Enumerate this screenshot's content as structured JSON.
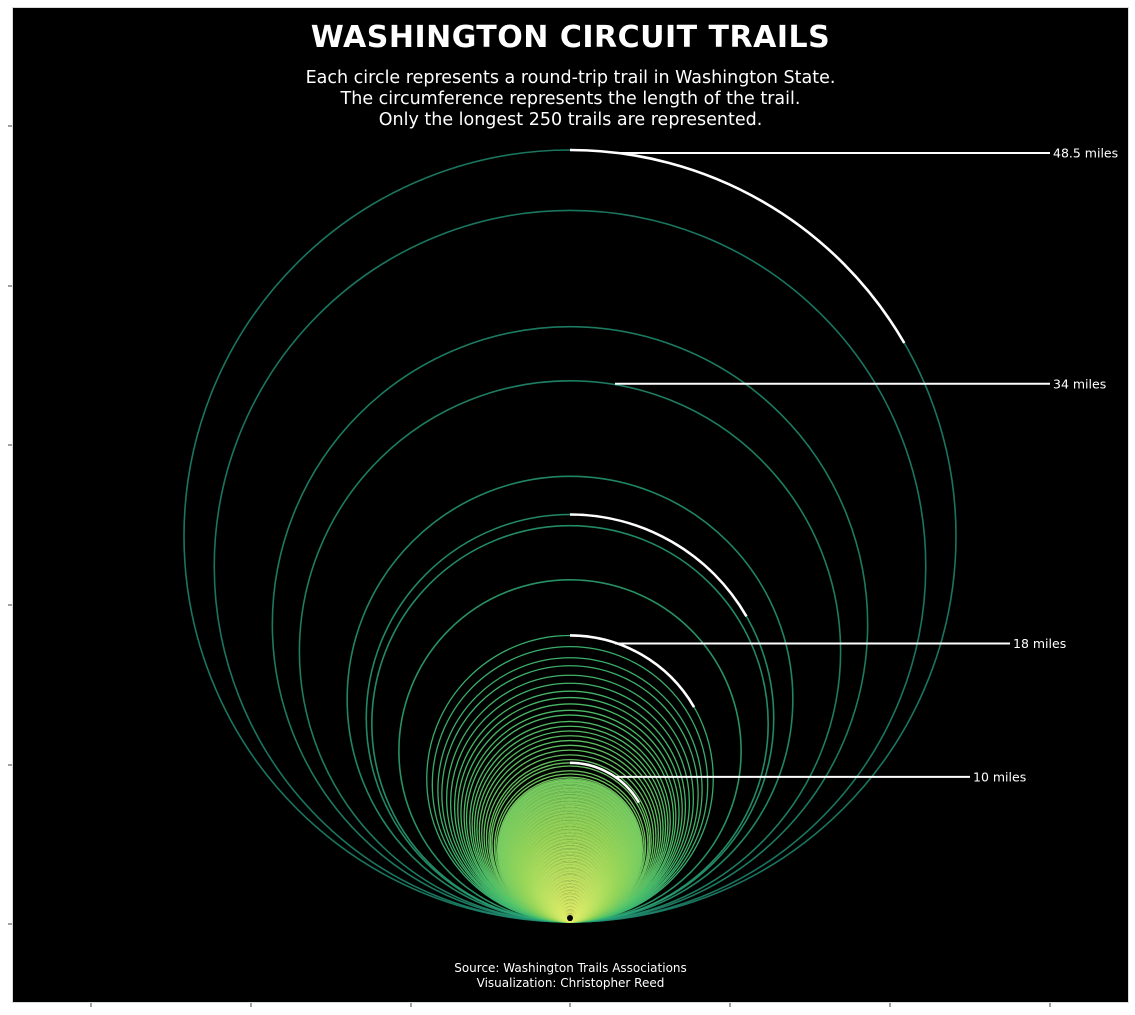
{
  "chart_data": {
    "type": "concentric-circles",
    "title": "WASHINGTON CIRCUIT TRAILS",
    "subtitle_lines": [
      "Each circle represents a round-trip trail in Washington State.",
      "The circumference represents the length of the trail.",
      "Only the longest 250 trails are represented."
    ],
    "source": "Source: Washington Trails Associations",
    "credit": "Visualization: Christopher Reed",
    "max_miles": 48.5,
    "visible_trail_lengths_miles": [
      48.5,
      44.7,
      37.4,
      34,
      28,
      25.6,
      24.9,
      21.5,
      18,
      17.3,
      16.6,
      16.1,
      15.5,
      15,
      14.5,
      14.1,
      13.7,
      13.3,
      13,
      12.6,
      12.3,
      12,
      11.7,
      11.4,
      11.1,
      10.8,
      10.5,
      10.2,
      10,
      9.8,
      9.5,
      9.3,
      9.1,
      8.9,
      8.7,
      8.5,
      8.3,
      8.1,
      7.9,
      7.7,
      7.5,
      7.3,
      7.1,
      6.9,
      6.7,
      6.5,
      6.3,
      6.1,
      5.9,
      5.7,
      5.5,
      5.3,
      5.1,
      4.9,
      4.7,
      4.5,
      4.3,
      4.1,
      3.9,
      3.7,
      3.5,
      3.3,
      3.1,
      2.9,
      2.7,
      2.5,
      2.3,
      2.1,
      1.9,
      1.7,
      1.5,
      1.3,
      1.1,
      0.9
    ],
    "highlighted_trails": [
      {
        "miles": 48.5,
        "label": "48.5 miles"
      },
      {
        "miles": 34,
        "label": "34 miles"
      },
      {
        "miles": 25.6,
        "label": ""
      },
      {
        "miles": 18,
        "label": "18 miles"
      },
      {
        "miles": 10,
        "label": "10 miles"
      }
    ],
    "colormap": [
      "#1f8a70",
      "#2aa876",
      "#4fc36b",
      "#97d65a",
      "#e8f06a"
    ],
    "highlight_color": "#ffffff",
    "background": "#000000"
  }
}
